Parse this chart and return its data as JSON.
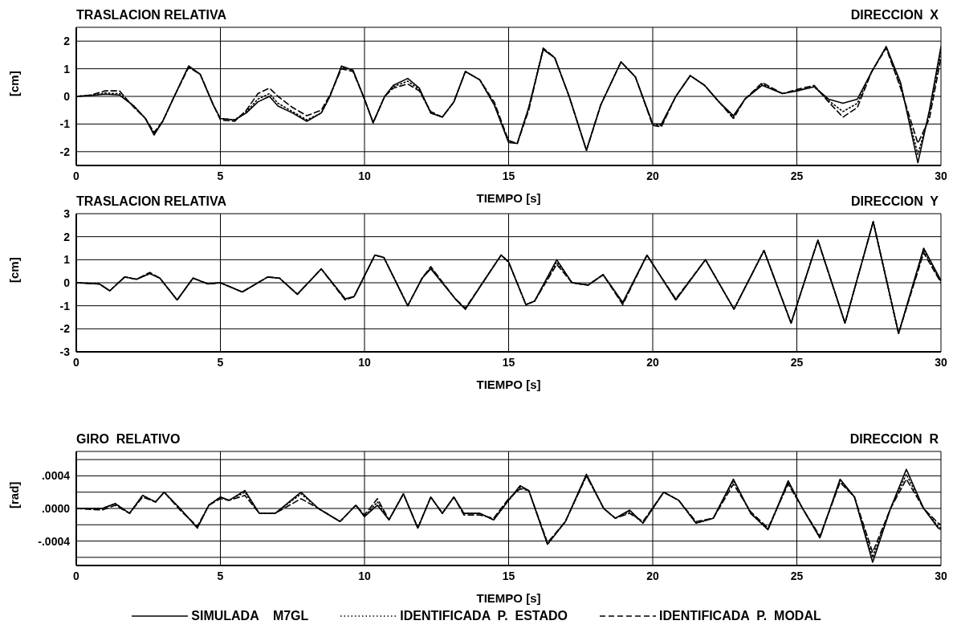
{
  "chart_data": [
    {
      "type": "line",
      "title": "TRASLACION RELATIVA",
      "subtitle": "DIRECCION  X",
      "xlabel": "TIEMPO  [s]",
      "ylabel": "[cm]",
      "xlim": [
        0,
        30
      ],
      "xticks": [
        0,
        5,
        10,
        15,
        20,
        25,
        30
      ],
      "ylim": [
        -2.5,
        2.5
      ],
      "yticks": [
        -2,
        -1,
        0,
        1,
        2
      ],
      "grid": true,
      "x": [
        0,
        0.5,
        1,
        1.5,
        2,
        2.4,
        2.7,
        3,
        3.4,
        3.9,
        4.3,
        4.75,
        5,
        5.5,
        5.9,
        6.3,
        6.7,
        7,
        7.5,
        8,
        8.5,
        8.8,
        9.2,
        9.6,
        10,
        10.3,
        10.7,
        11,
        11.5,
        11.9,
        12.3,
        12.7,
        13.1,
        13.5,
        14,
        14.5,
        15,
        15.3,
        15.7,
        16.2,
        16.6,
        17.1,
        17.7,
        18.2,
        18.9,
        19.4,
        20,
        20.3,
        20.8,
        21.3,
        21.8,
        22.3,
        22.8,
        23.2,
        23.8,
        24.5,
        25,
        25.6,
        26.1,
        26.6,
        27.1,
        27.6,
        28.1,
        28.6,
        29.2,
        29.6,
        30
      ],
      "series": [
        {
          "color": "#000000",
          "line_style": "solid",
          "values": [
            0,
            0.03,
            0.08,
            0.05,
            -0.35,
            -0.8,
            -1.4,
            -0.9,
            0,
            1.1,
            0.8,
            -0.3,
            -0.8,
            -0.85,
            -0.6,
            -0.2,
            0,
            -0.35,
            -0.6,
            -0.9,
            -0.6,
            0,
            1.1,
            0.95,
            -0.1,
            -0.95,
            0,
            0.4,
            0.65,
            0.3,
            -0.6,
            -0.75,
            -0.2,
            0.9,
            0.6,
            -0.3,
            -1.67,
            -1.7,
            -0.4,
            1.7,
            1.4,
            0,
            -1.95,
            -0.3,
            1.25,
            0.7,
            -1.0,
            -1.0,
            0,
            0.75,
            0.4,
            -0.2,
            -0.7,
            -0.1,
            0.4,
            0.1,
            0.2,
            0.35,
            -0.1,
            -0.25,
            -0.1,
            0.9,
            1.8,
            0.5,
            -2.4,
            -0.5,
            1.8
          ]
        },
        {
          "color": "#000000",
          "line_style": "dotted",
          "values": [
            0,
            0.04,
            0.12,
            0.1,
            -0.35,
            -0.8,
            -1.35,
            -0.9,
            0,
            1.1,
            0.8,
            -0.3,
            -0.8,
            -0.85,
            -0.55,
            -0.1,
            0.1,
            -0.25,
            -0.55,
            -0.85,
            -0.6,
            0,
            1.05,
            0.95,
            -0.1,
            -0.95,
            0,
            0.35,
            0.55,
            0.25,
            -0.6,
            -0.75,
            -0.2,
            0.9,
            0.6,
            -0.3,
            -1.65,
            -1.7,
            -0.4,
            1.7,
            1.4,
            0,
            -1.95,
            -0.3,
            1.25,
            0.7,
            -1.0,
            -1.05,
            0,
            0.75,
            0.4,
            -0.2,
            -0.75,
            -0.1,
            0.45,
            0.1,
            0.2,
            0.35,
            -0.15,
            -0.55,
            -0.25,
            0.9,
            1.8,
            0.4,
            -2.1,
            -0.6,
            1.6
          ]
        },
        {
          "color": "#000000",
          "line_style": "dashed",
          "values": [
            0,
            0.05,
            0.2,
            0.2,
            -0.4,
            -0.8,
            -1.3,
            -0.9,
            0,
            1.05,
            0.8,
            -0.3,
            -0.85,
            -0.9,
            -0.5,
            0.1,
            0.3,
            0,
            -0.4,
            -0.7,
            -0.5,
            0.05,
            1.0,
            0.9,
            -0.1,
            -0.95,
            0,
            0.3,
            0.45,
            0.2,
            -0.55,
            -0.75,
            -0.2,
            0.9,
            0.6,
            -0.2,
            -1.6,
            -1.7,
            -0.5,
            1.75,
            1.4,
            0,
            -1.95,
            -0.3,
            1.25,
            0.7,
            -1.05,
            -1.1,
            0,
            0.75,
            0.4,
            -0.2,
            -0.8,
            -0.1,
            0.5,
            0.1,
            0.25,
            0.4,
            -0.2,
            -0.75,
            -0.4,
            0.9,
            1.75,
            0.3,
            -1.7,
            -0.8,
            1.4
          ]
        }
      ]
    },
    {
      "type": "line",
      "title": "TRASLACION RELATIVA",
      "subtitle": "DIRECCION  Y",
      "xlabel": "TIEMPO  [s]",
      "ylabel": "[cm]",
      "xlim": [
        0,
        30
      ],
      "xticks": [
        0,
        5,
        10,
        15,
        20,
        25,
        30
      ],
      "ylim": [
        -3,
        3
      ],
      "yticks": [
        -3,
        -2,
        -1,
        0,
        1,
        2,
        3
      ],
      "grid": true,
      "x": [
        0,
        0.8,
        1.16,
        1.68,
        2.09,
        2.55,
        2.9,
        3.5,
        4.05,
        4.57,
        5,
        5.76,
        6.64,
        7.05,
        7.67,
        8.5,
        9.33,
        9.64,
        10.36,
        10.67,
        11.5,
        12,
        12.3,
        13.15,
        13.5,
        14.1,
        14.74,
        15,
        15.6,
        15.9,
        16.67,
        17.2,
        17.76,
        18.28,
        18.96,
        19.8,
        20.16,
        20.8,
        21.83,
        22.82,
        23.86,
        24.8,
        25.73,
        26.67,
        27.65,
        28.53,
        29.4,
        30
      ],
      "series": [
        {
          "color": "#000000",
          "line_style": "solid",
          "values": [
            0,
            -0.05,
            -0.35,
            0.25,
            0.15,
            0.4,
            0.2,
            -0.75,
            0.2,
            -0.05,
            0,
            -0.4,
            0.25,
            0.2,
            -0.5,
            0.6,
            -0.7,
            -0.6,
            1.2,
            1.1,
            -1.0,
            0.2,
            0.6,
            -0.7,
            -1.15,
            0,
            1.2,
            0.9,
            -0.95,
            -0.8,
            1.0,
            0,
            -0.1,
            0.35,
            -0.85,
            1.2,
            0.5,
            -0.75,
            1.0,
            -1.15,
            1.4,
            -1.75,
            1.85,
            -1.75,
            2.65,
            -2.2,
            1.5,
            0.1
          ]
        },
        {
          "color": "#000000",
          "line_style": "dotted",
          "values": [
            0,
            -0.05,
            -0.35,
            0.25,
            0.15,
            0.4,
            0.2,
            -0.75,
            0.2,
            -0.05,
            0,
            -0.4,
            0.25,
            0.2,
            -0.5,
            0.6,
            -0.7,
            -0.6,
            1.2,
            1.1,
            -1.0,
            0.2,
            0.65,
            -0.7,
            -1.15,
            0,
            1.2,
            0.9,
            -0.95,
            -0.8,
            0.9,
            0,
            -0.1,
            0.35,
            -0.9,
            1.2,
            0.5,
            -0.75,
            1.0,
            -1.15,
            1.4,
            -1.75,
            1.85,
            -1.75,
            2.65,
            -2.2,
            1.4,
            0.05
          ]
        },
        {
          "color": "#000000",
          "line_style": "dashed",
          "values": [
            0,
            -0.05,
            -0.35,
            0.25,
            0.15,
            0.45,
            0.2,
            -0.75,
            0.2,
            -0.05,
            0,
            -0.4,
            0.25,
            0.2,
            -0.5,
            0.6,
            -0.75,
            -0.6,
            1.2,
            1.1,
            -1.0,
            0.2,
            0.7,
            -0.7,
            -1.1,
            0,
            1.2,
            0.9,
            -0.95,
            -0.8,
            0.8,
            0,
            -0.1,
            0.35,
            -0.95,
            1.2,
            0.5,
            -0.7,
            1.0,
            -1.15,
            1.4,
            -1.75,
            1.85,
            -1.75,
            2.65,
            -2.2,
            1.3,
            0
          ]
        }
      ]
    },
    {
      "type": "line",
      "title": "GIRO  RELATIVO",
      "subtitle": "DIRECCION  R",
      "xlabel": "TIEMPO  [s]",
      "ylabel": "[rad]",
      "xlim": [
        0,
        30
      ],
      "xticks": [
        0,
        5,
        10,
        15,
        20,
        25,
        30
      ],
      "ylim": [
        -0.0007,
        0.0007
      ],
      "yticks": [
        {
          "value": -0.0006,
          "label": null
        },
        {
          "value": -0.0004,
          "label": "-.0004"
        },
        {
          "value": -0.0002,
          "label": null
        },
        {
          "value": 0,
          "label": ".0000"
        },
        {
          "value": 0.0002,
          "label": null
        },
        {
          "value": 0.0004,
          "label": ".0004"
        },
        {
          "value": 0.0006,
          "label": null
        }
      ],
      "grid": true,
      "legend": "bottom",
      "x": [
        0,
        0.9,
        1.35,
        1.85,
        2.3,
        2.75,
        3.05,
        3.6,
        4.2,
        4.6,
        5,
        5.3,
        5.85,
        6.35,
        6.9,
        7.8,
        8.4,
        9.15,
        9.7,
        10,
        10.45,
        10.85,
        11.35,
        11.85,
        12.3,
        12.7,
        13.1,
        13.45,
        14,
        14.48,
        15,
        15.4,
        15.7,
        16.35,
        16.97,
        17.7,
        18.3,
        18.7,
        19.2,
        19.66,
        20.38,
        20.9,
        21.5,
        22.1,
        22.8,
        23.4,
        24,
        24.7,
        25.2,
        25.8,
        26.5,
        27,
        27.63,
        28.25,
        28.8,
        29.4,
        29.9,
        30
      ],
      "series": [
        {
          "name": "SIMULADA    M7GL",
          "color": "#000000",
          "line_style": "solid",
          "values": [
            0,
            0,
            6e-05,
            -6e-05,
            0.00016,
            8e-05,
            0.0002,
            0,
            -0.00024,
            4e-05,
            0.00014,
            0.0001,
            0.00022,
            -6e-05,
            -6e-05,
            0.0002,
            0,
            -0.00016,
            4e-05,
            -0.0001,
            4e-05,
            -0.00014,
            0.00018,
            -0.00024,
            0.00014,
            -6e-05,
            0.00014,
            -6e-05,
            -6e-05,
            -0.00014,
            0.0001,
            0.00028,
            0.00022,
            -0.00044,
            -0.00016,
            0.00042,
            0,
            -0.00012,
            -2e-05,
            -0.00018,
            0.0002,
            0.0001,
            -0.00018,
            -0.00012,
            0.00036,
            -6e-05,
            -0.00026,
            0.00034,
            0,
            -0.00036,
            0.00036,
            0.00014,
            -0.00066,
            0,
            0.00048,
            0,
            -0.00024,
            -0.00026
          ]
        },
        {
          "name": "IDENTIFICADA  P.  ESTADO",
          "color": "#000000",
          "line_style": "dotted",
          "values": [
            0,
            0,
            6e-05,
            -6e-05,
            0.00016,
            8e-05,
            0.0002,
            0,
            -0.00024,
            4e-05,
            0.00014,
            0.0001,
            0.0002,
            -6e-05,
            -6e-05,
            0.00018,
            0,
            -0.00016,
            4e-05,
            -0.0001,
            8e-05,
            -0.00014,
            0.00018,
            -0.00024,
            0.00014,
            -6e-05,
            0.00014,
            -6e-05,
            -6e-05,
            -0.00014,
            0.0001,
            0.00026,
            0.00022,
            -0.00044,
            -0.00016,
            0.0004,
            0,
            -0.00012,
            -4e-05,
            -0.00018,
            0.0002,
            0.0001,
            -0.00018,
            -0.00012,
            0.00034,
            -6e-05,
            -0.00026,
            0.00032,
            0,
            -0.00036,
            0.00034,
            0.00014,
            -0.0006,
            0,
            0.00042,
            0,
            -0.00022,
            -0.00024
          ]
        },
        {
          "name": "IDENTIFICADA  P.  MODAL",
          "color": "#000000",
          "line_style": "dashed",
          "values": [
            0,
            -2e-05,
            4e-05,
            -6e-05,
            0.00014,
            8e-05,
            0.0002,
            -2e-05,
            -0.00022,
            4e-05,
            0.00012,
            0.0001,
            0.00016,
            -6e-05,
            -6e-05,
            0.00012,
            0,
            -0.00016,
            4e-05,
            -8e-05,
            0.00012,
            -0.00014,
            0.00018,
            -0.00024,
            0.00014,
            -6e-05,
            0.00014,
            -8e-05,
            -8e-05,
            -0.00012,
            0.00012,
            0.00024,
            0.00022,
            -0.00042,
            -0.00016,
            0.0004,
            0,
            -0.00012,
            -6e-05,
            -0.00016,
            0.0002,
            0.0001,
            -0.00016,
            -0.00012,
            0.0003,
            -4e-05,
            -0.00024,
            0.0003,
            0,
            -0.00034,
            0.00032,
            0.00014,
            -0.00054,
            0,
            0.00036,
            0,
            -0.00018,
            -0.0002
          ]
        }
      ]
    }
  ]
}
